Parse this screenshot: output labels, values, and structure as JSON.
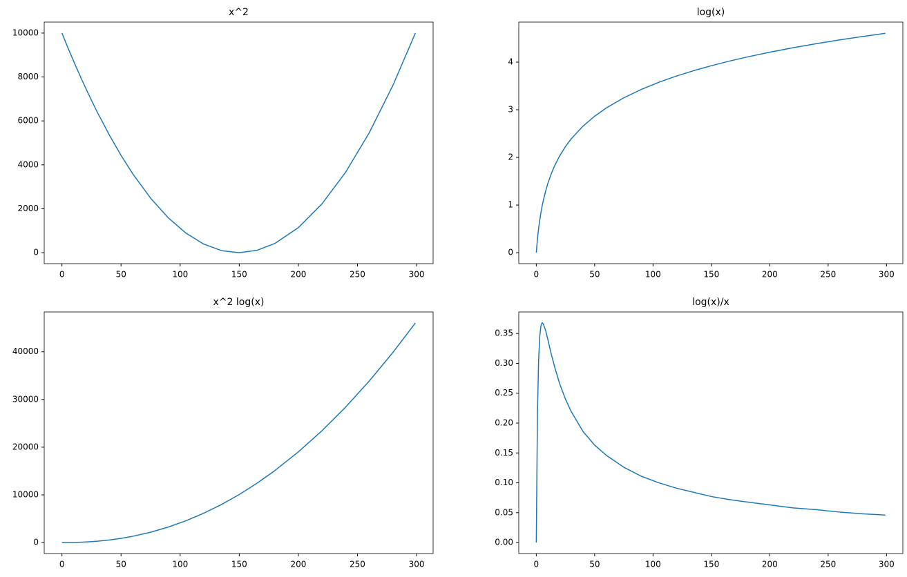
{
  "chart_data": [
    {
      "type": "line",
      "title": "x^2",
      "x": [
        0,
        1,
        2,
        3,
        4,
        5,
        6,
        8,
        10,
        13,
        16,
        20,
        25,
        30,
        40,
        50,
        60,
        75,
        90,
        105,
        120,
        135,
        150,
        165,
        180,
        200,
        220,
        240,
        260,
        280,
        299
      ],
      "series": [
        {
          "color": "#1f77b4",
          "values": [
            10000,
            9867,
            9734,
            9603,
            9472,
            9342,
            9214,
            8958,
            8707,
            8336,
            7974,
            7503,
            6935,
            6389,
            5365,
            4430,
            3584,
            2483,
            1584,
            886,
            389,
            94,
            0,
            108,
            416,
            1141,
            2224,
            3665,
            5463,
            7620,
            10000
          ]
        }
      ],
      "xlim": [
        -15,
        314
      ],
      "xticks": [
        0,
        50,
        100,
        150,
        200,
        250,
        300
      ],
      "ylim": [
        -500,
        10500
      ],
      "yticks": [
        0,
        2000,
        4000,
        6000,
        8000,
        10000
      ]
    },
    {
      "type": "line",
      "title": "log(x)",
      "x": [
        0,
        1,
        2,
        3,
        4,
        5,
        6,
        8,
        10,
        13,
        16,
        20,
        25,
        30,
        40,
        50,
        60,
        75,
        90,
        105,
        120,
        135,
        150,
        165,
        180,
        200,
        220,
        240,
        260,
        280,
        299
      ],
      "series": [
        {
          "color": "#1f77b4",
          "values": [
            0,
            0.286,
            0.508,
            0.69,
            0.843,
            0.977,
            1.094,
            1.294,
            1.461,
            1.668,
            1.84,
            2.031,
            2.228,
            2.392,
            2.656,
            2.865,
            3.038,
            3.252,
            3.427,
            3.577,
            3.707,
            3.822,
            3.925,
            4.019,
            4.104,
            4.208,
            4.302,
            4.388,
            4.467,
            4.54,
            4.605
          ]
        }
      ],
      "xlim": [
        -15,
        314
      ],
      "xticks": [
        0,
        50,
        100,
        150,
        200,
        250,
        300
      ],
      "ylim": [
        -0.23,
        4.84
      ],
      "yticks": [
        0,
        1,
        2,
        3,
        4
      ]
    },
    {
      "type": "line",
      "title": "x^2 log(x)",
      "x": [
        0,
        1,
        2,
        3,
        4,
        5,
        6,
        8,
        10,
        13,
        16,
        20,
        25,
        30,
        40,
        50,
        60,
        75,
        90,
        105,
        120,
        135,
        150,
        165,
        180,
        200,
        220,
        240,
        260,
        280,
        299
      ],
      "series": [
        {
          "color": "#1f77b4",
          "values": [
            0,
            0.5,
            1.4,
            2.7,
            4.6,
            6.9,
            9.8,
            17,
            27,
            47,
            73,
            118,
            192,
            286,
            539,
            883,
            1323,
            2170,
            3251,
            4576,
            6150,
            7982,
            10076,
            12439,
            15071,
            19015,
            23458,
            28411,
            33878,
            39868,
            46052
          ]
        }
      ],
      "xlim": [
        -15,
        314
      ],
      "xticks": [
        0,
        50,
        100,
        150,
        200,
        250,
        300
      ],
      "ylim": [
        -2303,
        48355
      ],
      "yticks": [
        0,
        10000,
        20000,
        30000,
        40000
      ]
    },
    {
      "type": "line",
      "title": "log(x)/x",
      "x": [
        0,
        1,
        2,
        3,
        4,
        5,
        6,
        8,
        10,
        13,
        16,
        20,
        25,
        30,
        40,
        50,
        60,
        75,
        90,
        105,
        120,
        135,
        150,
        165,
        180,
        200,
        220,
        240,
        260,
        280,
        299
      ],
      "series": [
        {
          "color": "#1f77b4",
          "values": [
            0,
            0.215,
            0.306,
            0.346,
            0.363,
            0.368,
            0.366,
            0.355,
            0.339,
            0.314,
            0.292,
            0.266,
            0.24,
            0.219,
            0.186,
            0.163,
            0.146,
            0.126,
            0.111,
            0.1,
            0.091,
            0.084,
            0.077,
            0.072,
            0.068,
            0.063,
            0.058,
            0.055,
            0.051,
            0.048,
            0.046
          ]
        }
      ],
      "xlim": [
        -15,
        314
      ],
      "xticks": [
        0,
        50,
        100,
        150,
        200,
        250,
        300
      ],
      "ylim": [
        -0.0184,
        0.386
      ],
      "yticks": [
        {
          "value": 0,
          "label": "0.00"
        },
        {
          "value": 0.05,
          "label": "0.05"
        },
        {
          "value": 0.1,
          "label": "0.10"
        },
        {
          "value": 0.15,
          "label": "0.15"
        },
        {
          "value": 0.2,
          "label": "0.20"
        },
        {
          "value": 0.25,
          "label": "0.25"
        },
        {
          "value": 0.3,
          "label": "0.30"
        },
        {
          "value": 0.35,
          "label": "0.35"
        }
      ]
    }
  ]
}
